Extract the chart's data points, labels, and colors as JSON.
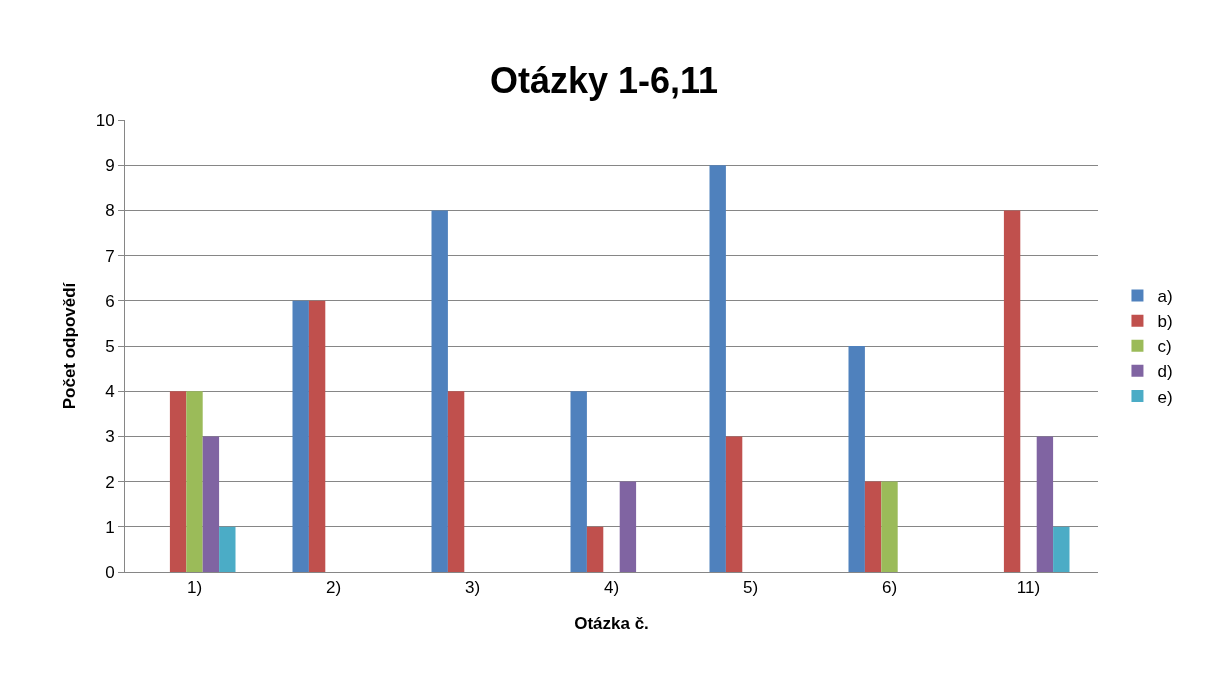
{
  "chart_data": {
    "type": "bar",
    "title": "Otázky 1-6,11",
    "xlabel": "Otázka č.",
    "ylabel": "Počet odpovědí",
    "categories": [
      "1)",
      "2)",
      "3)",
      "4)",
      "5)",
      "6)",
      "11)"
    ],
    "series": [
      {
        "name": "a)",
        "color": "#4f81bd",
        "values": [
          0,
          6,
          8,
          4,
          9,
          5,
          0
        ]
      },
      {
        "name": "b)",
        "color": "#c0504d",
        "values": [
          4,
          6,
          4,
          1,
          3,
          2,
          8
        ]
      },
      {
        "name": "c)",
        "color": "#9bbb59",
        "values": [
          4,
          0,
          0,
          0,
          0,
          2,
          0
        ]
      },
      {
        "name": "d)",
        "color": "#8064a2",
        "values": [
          3,
          0,
          0,
          2,
          0,
          0,
          3
        ]
      },
      {
        "name": "e)",
        "color": "#4bacc6",
        "values": [
          1,
          0,
          0,
          0,
          0,
          0,
          1
        ]
      }
    ],
    "ylim": [
      0,
      10
    ],
    "yticks": [
      0,
      1,
      2,
      3,
      4,
      5,
      6,
      7,
      8,
      9,
      10
    ],
    "grid": "y",
    "legend": "right"
  }
}
